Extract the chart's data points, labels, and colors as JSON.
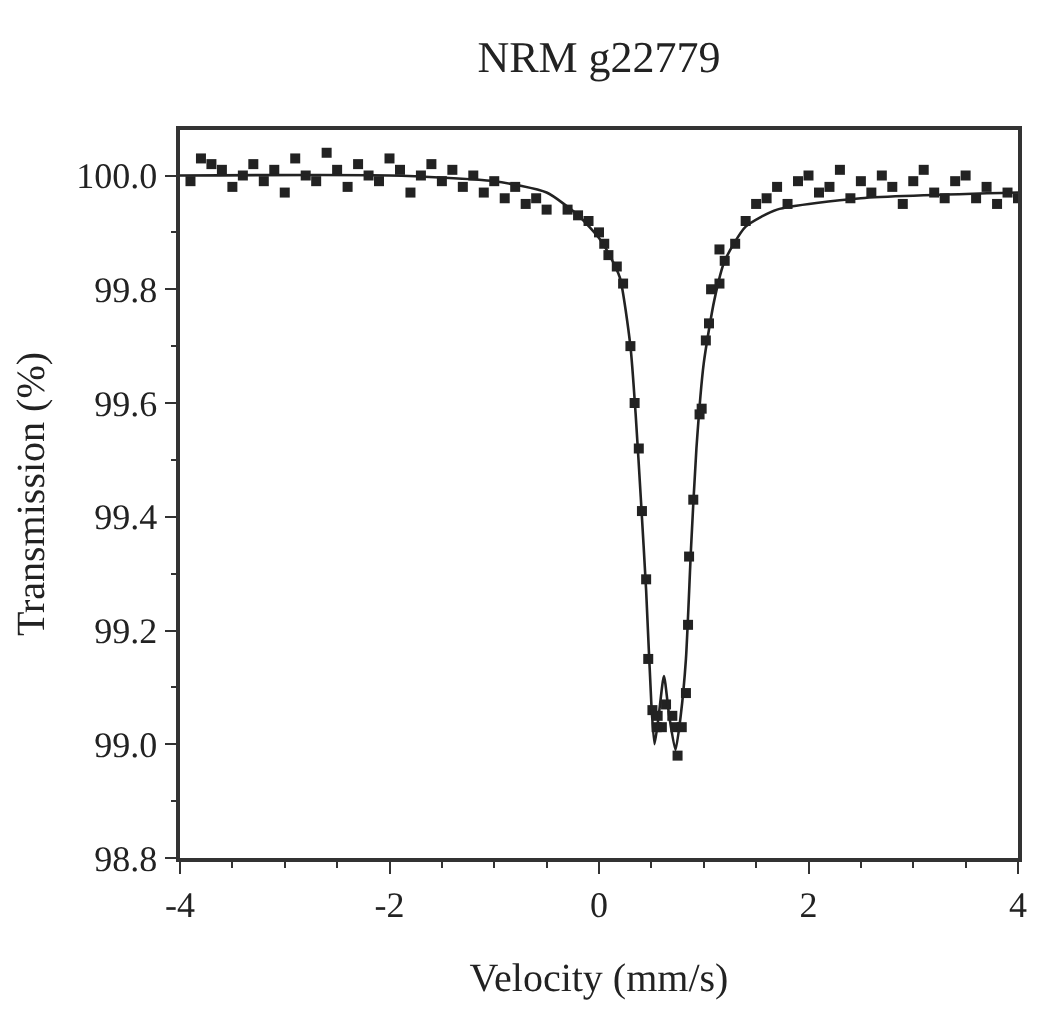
{
  "chart_data": {
    "type": "scatter",
    "title": "NRM g22779",
    "xlabel": "Velocity (mm/s)",
    "ylabel": "Transmission (%)",
    "xlim": [
      -4,
      4
    ],
    "xticks": [
      -4,
      -2,
      0,
      2,
      4
    ],
    "ylim": [
      98.8,
      100.08
    ],
    "yticks": [
      {
        "value": 98.8,
        "label": "98.8"
      },
      {
        "value": 99.0,
        "label": "99.0"
      },
      {
        "value": 99.2,
        "label": "99.2"
      },
      {
        "value": 99.4,
        "label": "99.4"
      },
      {
        "value": 99.6,
        "label": "99.6"
      },
      {
        "value": 99.8,
        "label": "99.8"
      },
      {
        "value": 100.0,
        "label": "100.0"
      }
    ],
    "series": [
      {
        "marker": "square",
        "color": "#222222",
        "x": [
          -3.9,
          -3.8,
          -3.7,
          -3.6,
          -3.5,
          -3.4,
          -3.3,
          -3.2,
          -3.1,
          -3.0,
          -2.9,
          -2.8,
          -2.7,
          -2.6,
          -2.5,
          -2.4,
          -2.3,
          -2.2,
          -2.1,
          -2.0,
          -1.9,
          -1.8,
          -1.7,
          -1.6,
          -1.5,
          -1.4,
          -1.3,
          -1.2,
          -1.1,
          -1.0,
          -0.9,
          -0.8,
          -0.7,
          -0.6,
          -0.5,
          -0.3,
          -0.2,
          -0.1,
          0.0,
          0.05,
          0.09,
          0.17,
          0.23,
          0.3,
          0.34,
          0.38,
          0.41,
          0.45,
          0.47,
          0.51,
          0.55,
          0.56,
          0.6,
          0.64,
          0.7,
          0.73,
          0.75,
          0.79,
          0.83,
          0.85,
          0.86,
          0.9,
          0.96,
          0.98,
          1.02,
          1.05,
          1.07,
          1.15,
          1.15,
          1.2,
          1.3,
          1.4,
          1.5,
          1.6,
          1.7,
          1.8,
          1.9,
          2.0,
          2.1,
          2.2,
          2.3,
          2.4,
          2.5,
          2.6,
          2.7,
          2.8,
          2.9,
          3.0,
          3.1,
          3.2,
          3.3,
          3.4,
          3.5,
          3.6,
          3.7,
          3.8,
          3.9,
          4.0
        ],
        "values": [
          99.99,
          100.03,
          100.02,
          100.01,
          99.98,
          100.0,
          100.02,
          99.99,
          100.01,
          99.97,
          100.03,
          100.0,
          99.99,
          100.04,
          100.01,
          99.98,
          100.02,
          100.0,
          99.99,
          100.03,
          100.01,
          99.97,
          100.0,
          100.02,
          99.99,
          100.01,
          99.98,
          100.0,
          99.97,
          99.99,
          99.96,
          99.98,
          99.95,
          99.96,
          99.94,
          99.94,
          99.93,
          99.92,
          99.9,
          99.88,
          99.86,
          99.84,
          99.81,
          99.7,
          99.6,
          99.52,
          99.41,
          99.29,
          99.15,
          99.06,
          99.03,
          99.05,
          99.03,
          99.07,
          99.05,
          99.03,
          98.98,
          99.03,
          99.09,
          99.21,
          99.33,
          99.43,
          99.58,
          99.59,
          99.71,
          99.74,
          99.8,
          99.81,
          99.87,
          99.85,
          99.88,
          99.92,
          99.95,
          99.96,
          99.98,
          99.95,
          99.99,
          100.0,
          99.97,
          99.98,
          100.01,
          99.96,
          99.99,
          99.97,
          100.0,
          99.98,
          99.95,
          99.99,
          100.01,
          99.97,
          99.96,
          99.99,
          100.0,
          99.96,
          99.98,
          99.95,
          99.97,
          99.96
        ]
      },
      {
        "type": "line",
        "marker": "none",
        "line_style": "solid",
        "color": "#222222",
        "x": [
          -4,
          -2,
          -1,
          -0.5,
          -0.2,
          0,
          0.1,
          0.2,
          0.3,
          0.35,
          0.4,
          0.45,
          0.5,
          0.53,
          0.57,
          0.62,
          0.67,
          0.73,
          0.78,
          0.83,
          0.88,
          0.93,
          1.0,
          1.1,
          1.2,
          1.4,
          1.7,
          2.5,
          4
        ],
        "values": [
          100.0,
          100.0,
          99.99,
          99.97,
          99.93,
          99.89,
          99.86,
          99.82,
          99.7,
          99.58,
          99.43,
          99.27,
          99.07,
          99.0,
          99.05,
          99.12,
          99.05,
          98.99,
          99.05,
          99.15,
          99.35,
          99.52,
          99.67,
          99.78,
          99.85,
          99.91,
          99.94,
          99.96,
          99.97
        ]
      }
    ]
  }
}
